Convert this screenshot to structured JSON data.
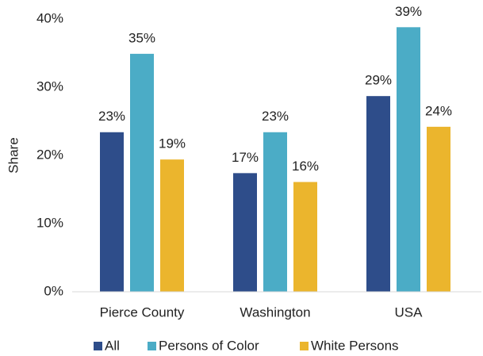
{
  "chart_data": {
    "type": "bar",
    "y_label": "Share",
    "categories": [
      "Pierce County",
      "Washington",
      "USA"
    ],
    "series": [
      {
        "name": "All",
        "color": "#2e4d8a",
        "values": [
          23.4,
          17.4,
          28.7
        ],
        "value_labels": [
          "23%",
          "17%",
          "29%"
        ]
      },
      {
        "name": "Persons of Color",
        "color": "#4bacc6",
        "values": [
          34.9,
          23.4,
          38.8
        ],
        "value_labels": [
          "35%",
          "23%",
          "39%"
        ]
      },
      {
        "name": "White Persons",
        "color": "#ebb52d",
        "values": [
          19.4,
          16.1,
          24.2
        ],
        "value_labels": [
          "19%",
          "16%",
          "24%"
        ]
      }
    ],
    "ylim": [
      0,
      40
    ],
    "yticks": [
      {
        "value": 0,
        "label": "0%"
      },
      {
        "value": 10,
        "label": "10%"
      },
      {
        "value": 20,
        "label": "20%"
      },
      {
        "value": 30,
        "label": "30%"
      },
      {
        "value": 40,
        "label": "40%"
      }
    ],
    "grid": false,
    "legend": "bottom"
  }
}
